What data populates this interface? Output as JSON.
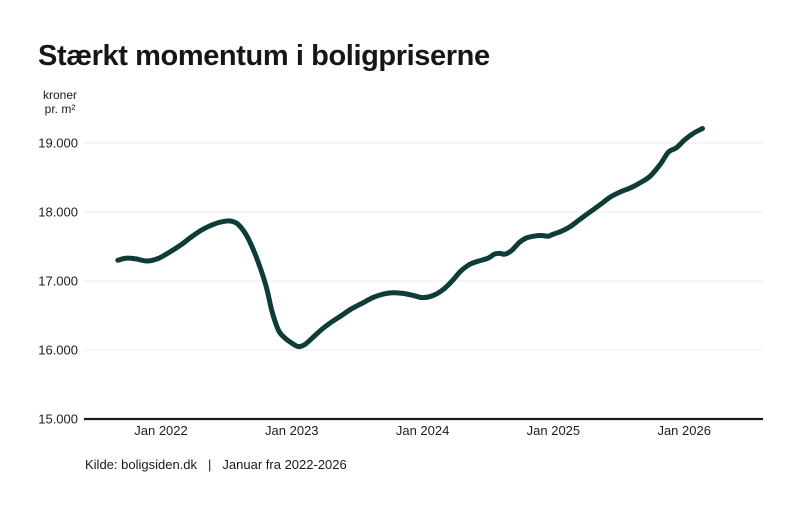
{
  "header": {
    "title": "Stærkt momentum i boligpriserne"
  },
  "colors": {
    "background": "#ffffff",
    "line": "#0e3c36",
    "grid": "#efefef",
    "axis": "#1a1a1a",
    "text": "#1d1d1d"
  },
  "chart_data": {
    "type": "line",
    "title": "Stærkt momentum i boligpriserne",
    "unit_label_lines": [
      "kroner",
      "pr. m²"
    ],
    "legend": "none",
    "grid": "horizontal only",
    "y_axis": {
      "unit": "kroner pr. m²",
      "min": 15000,
      "max": 19500,
      "baseline_value": 15000,
      "ticks": [
        {
          "value": 19000,
          "label": "19.000"
        },
        {
          "value": 18000,
          "label": "18.000"
        },
        {
          "value": 17000,
          "label": "17.000"
        },
        {
          "value": 16000,
          "label": "16.000"
        },
        {
          "value": 15000,
          "label": "15.000"
        }
      ]
    },
    "x_axis": {
      "unit": "years offset from Jan 2022, monthly data",
      "ticks": [
        {
          "t": 0,
          "label": "Jan 2022"
        },
        {
          "t": 1,
          "label": "Jan 2023"
        },
        {
          "t": 2,
          "label": "Jan 2024"
        },
        {
          "t": 3,
          "label": "Jan 2025"
        },
        {
          "t": 4,
          "label": "Jan 2026"
        }
      ]
    },
    "series": [
      {
        "color": "#0e3c36",
        "stroke_width": 5,
        "points": [
          [
            -0.33,
            17300
          ],
          [
            -0.27,
            17330
          ],
          [
            -0.19,
            17320
          ],
          [
            -0.11,
            17290
          ],
          [
            -0.03,
            17320
          ],
          [
            0.05,
            17400
          ],
          [
            0.15,
            17520
          ],
          [
            0.24,
            17650
          ],
          [
            0.32,
            17750
          ],
          [
            0.4,
            17820
          ],
          [
            0.47,
            17860
          ],
          [
            0.53,
            17870
          ],
          [
            0.59,
            17820
          ],
          [
            0.66,
            17640
          ],
          [
            0.73,
            17340
          ],
          [
            0.8,
            16950
          ],
          [
            0.85,
            16550
          ],
          [
            0.9,
            16280
          ],
          [
            0.95,
            16170
          ],
          [
            1.0,
            16100
          ],
          [
            1.05,
            16050
          ],
          [
            1.1,
            16080
          ],
          [
            1.16,
            16180
          ],
          [
            1.23,
            16300
          ],
          [
            1.3,
            16400
          ],
          [
            1.38,
            16500
          ],
          [
            1.45,
            16590
          ],
          [
            1.54,
            16680
          ],
          [
            1.62,
            16760
          ],
          [
            1.7,
            16810
          ],
          [
            1.77,
            16830
          ],
          [
            1.85,
            16820
          ],
          [
            1.93,
            16790
          ],
          [
            2.0,
            16760
          ],
          [
            2.08,
            16790
          ],
          [
            2.16,
            16880
          ],
          [
            2.23,
            17010
          ],
          [
            2.29,
            17140
          ],
          [
            2.36,
            17240
          ],
          [
            2.43,
            17290
          ],
          [
            2.5,
            17330
          ],
          [
            2.55,
            17390
          ],
          [
            2.59,
            17400
          ],
          [
            2.63,
            17390
          ],
          [
            2.68,
            17440
          ],
          [
            2.74,
            17560
          ],
          [
            2.79,
            17620
          ],
          [
            2.85,
            17650
          ],
          [
            2.91,
            17660
          ],
          [
            2.96,
            17650
          ],
          [
            3.0,
            17680
          ],
          [
            3.06,
            17720
          ],
          [
            3.13,
            17790
          ],
          [
            3.2,
            17890
          ],
          [
            3.28,
            18000
          ],
          [
            3.36,
            18110
          ],
          [
            3.43,
            18210
          ],
          [
            3.51,
            18290
          ],
          [
            3.59,
            18350
          ],
          [
            3.66,
            18420
          ],
          [
            3.74,
            18520
          ],
          [
            3.82,
            18700
          ],
          [
            3.88,
            18870
          ],
          [
            3.94,
            18930
          ],
          [
            4.0,
            19040
          ],
          [
            4.07,
            19140
          ],
          [
            4.14,
            19210
          ]
        ]
      }
    ]
  },
  "footer": {
    "source_label": "Kilde: boligsiden.dk",
    "divider": "|",
    "period_label": "Januar fra 2022-2026"
  }
}
